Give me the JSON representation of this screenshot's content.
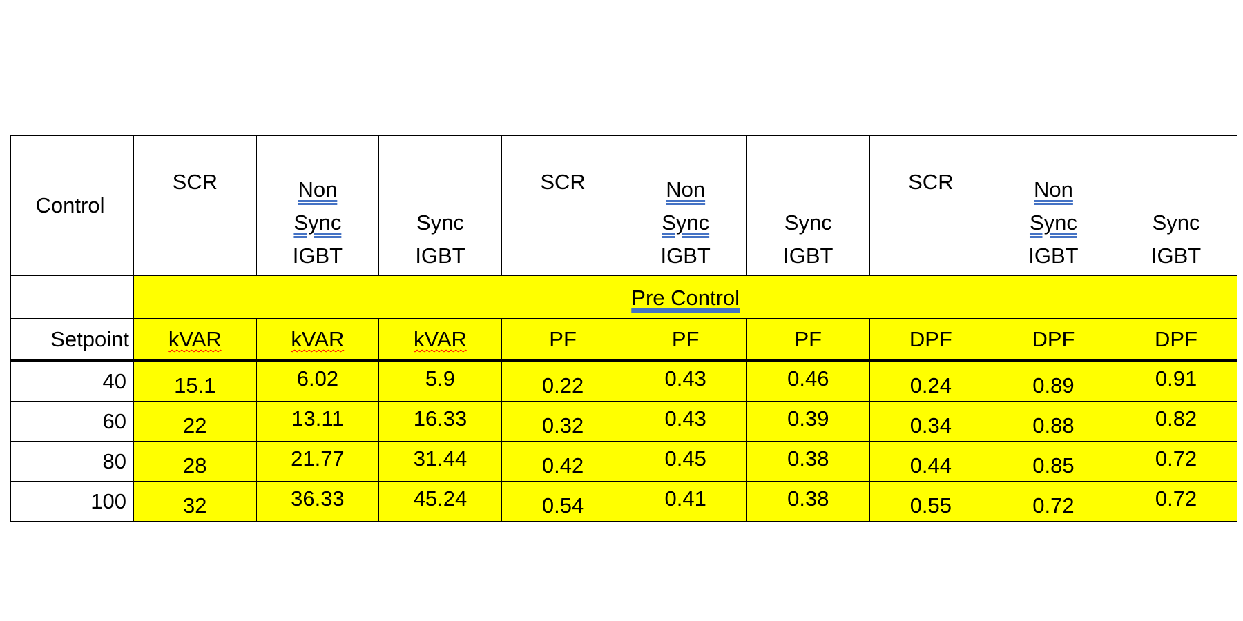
{
  "table": {
    "header": {
      "control_label": "Control",
      "columns": [
        {
          "lines": [
            "SCR"
          ]
        },
        {
          "lines": [
            "Non",
            "Sync",
            "IGBT"
          ],
          "underlined": [
            "Non",
            "Sync"
          ]
        },
        {
          "lines": [
            "Sync",
            "IGBT"
          ]
        },
        {
          "lines": [
            "SCR"
          ]
        },
        {
          "lines": [
            "Non",
            "Sync",
            "IGBT"
          ],
          "underlined": [
            "Non",
            "Sync"
          ]
        },
        {
          "lines": [
            "Sync",
            "IGBT"
          ]
        },
        {
          "lines": [
            "SCR"
          ]
        },
        {
          "lines": [
            "Non",
            "Sync",
            "IGBT"
          ],
          "underlined": [
            "Non",
            "Sync"
          ]
        },
        {
          "lines": [
            "Sync",
            "IGBT"
          ]
        }
      ]
    },
    "band_label": "Pre Control",
    "setpoint_label": "Setpoint",
    "units": [
      "kVAR",
      "kVAR",
      "kVAR",
      "PF",
      "PF",
      "PF",
      "DPF",
      "DPF",
      "DPF"
    ],
    "rows": [
      {
        "setpoint": "40",
        "values": [
          "15.1",
          "6.02",
          "5.9",
          "0.22",
          "0.43",
          "0.46",
          "0.24",
          "0.89",
          "0.91"
        ]
      },
      {
        "setpoint": "60",
        "values": [
          "22",
          "13.11",
          "16.33",
          "0.32",
          "0.43",
          "0.39",
          "0.34",
          "0.88",
          "0.82"
        ]
      },
      {
        "setpoint": "80",
        "values": [
          "28",
          "21.77",
          "31.44",
          "0.42",
          "0.45",
          "0.38",
          "0.44",
          "0.85",
          "0.72"
        ]
      },
      {
        "setpoint": "100",
        "values": [
          "32",
          "36.33",
          "45.24",
          "0.54",
          "0.41",
          "0.38",
          "0.55",
          "0.72",
          "0.72"
        ]
      }
    ],
    "colors": {
      "highlight": "#ffff00",
      "border": "#000000",
      "double_underline": "#4472c4",
      "spellcheck_squiggle": "#ff0000"
    }
  }
}
